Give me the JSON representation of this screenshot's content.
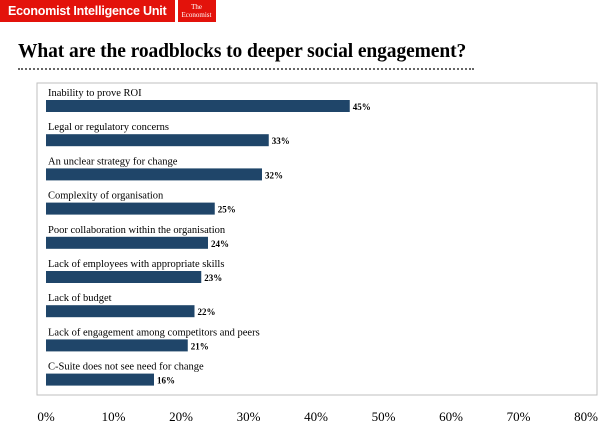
{
  "brand": {
    "eiu": "Economist Intelligence Unit",
    "econ_line1": "The",
    "econ_line2": "Economist"
  },
  "colors": {
    "bar": "#1f4569",
    "brand_red": "#e3120b",
    "frame": "#bfbfbf"
  },
  "chart_data": {
    "type": "bar",
    "orientation": "horizontal",
    "title": "What are the roadblocks to deeper social engagement?",
    "categories": [
      "Inability to prove ROI",
      "Legal or regulatory concerns",
      "An unclear strategy for change",
      "Complexity of organisation",
      "Poor collaboration within the organisation",
      "Lack of employees with appropriate skills",
      "Lack of budget",
      "Lack of engagement among competitors and peers",
      "C-Suite does not see need for change"
    ],
    "values": [
      45,
      33,
      32,
      25,
      24,
      23,
      22,
      21,
      16
    ],
    "value_labels": [
      "45%",
      "33%",
      "32%",
      "25%",
      "24%",
      "23%",
      "22%",
      "21%",
      "16%"
    ],
    "xlim": [
      0,
      80
    ],
    "xticks": [
      0,
      10,
      20,
      30,
      40,
      50,
      60,
      70,
      80
    ],
    "xtick_labels": [
      "0%",
      "10%",
      "20%",
      "30%",
      "40%",
      "50%",
      "60%",
      "70%",
      "80%"
    ],
    "xlabel": "",
    "ylabel": "",
    "grid": false,
    "legend": "none"
  }
}
